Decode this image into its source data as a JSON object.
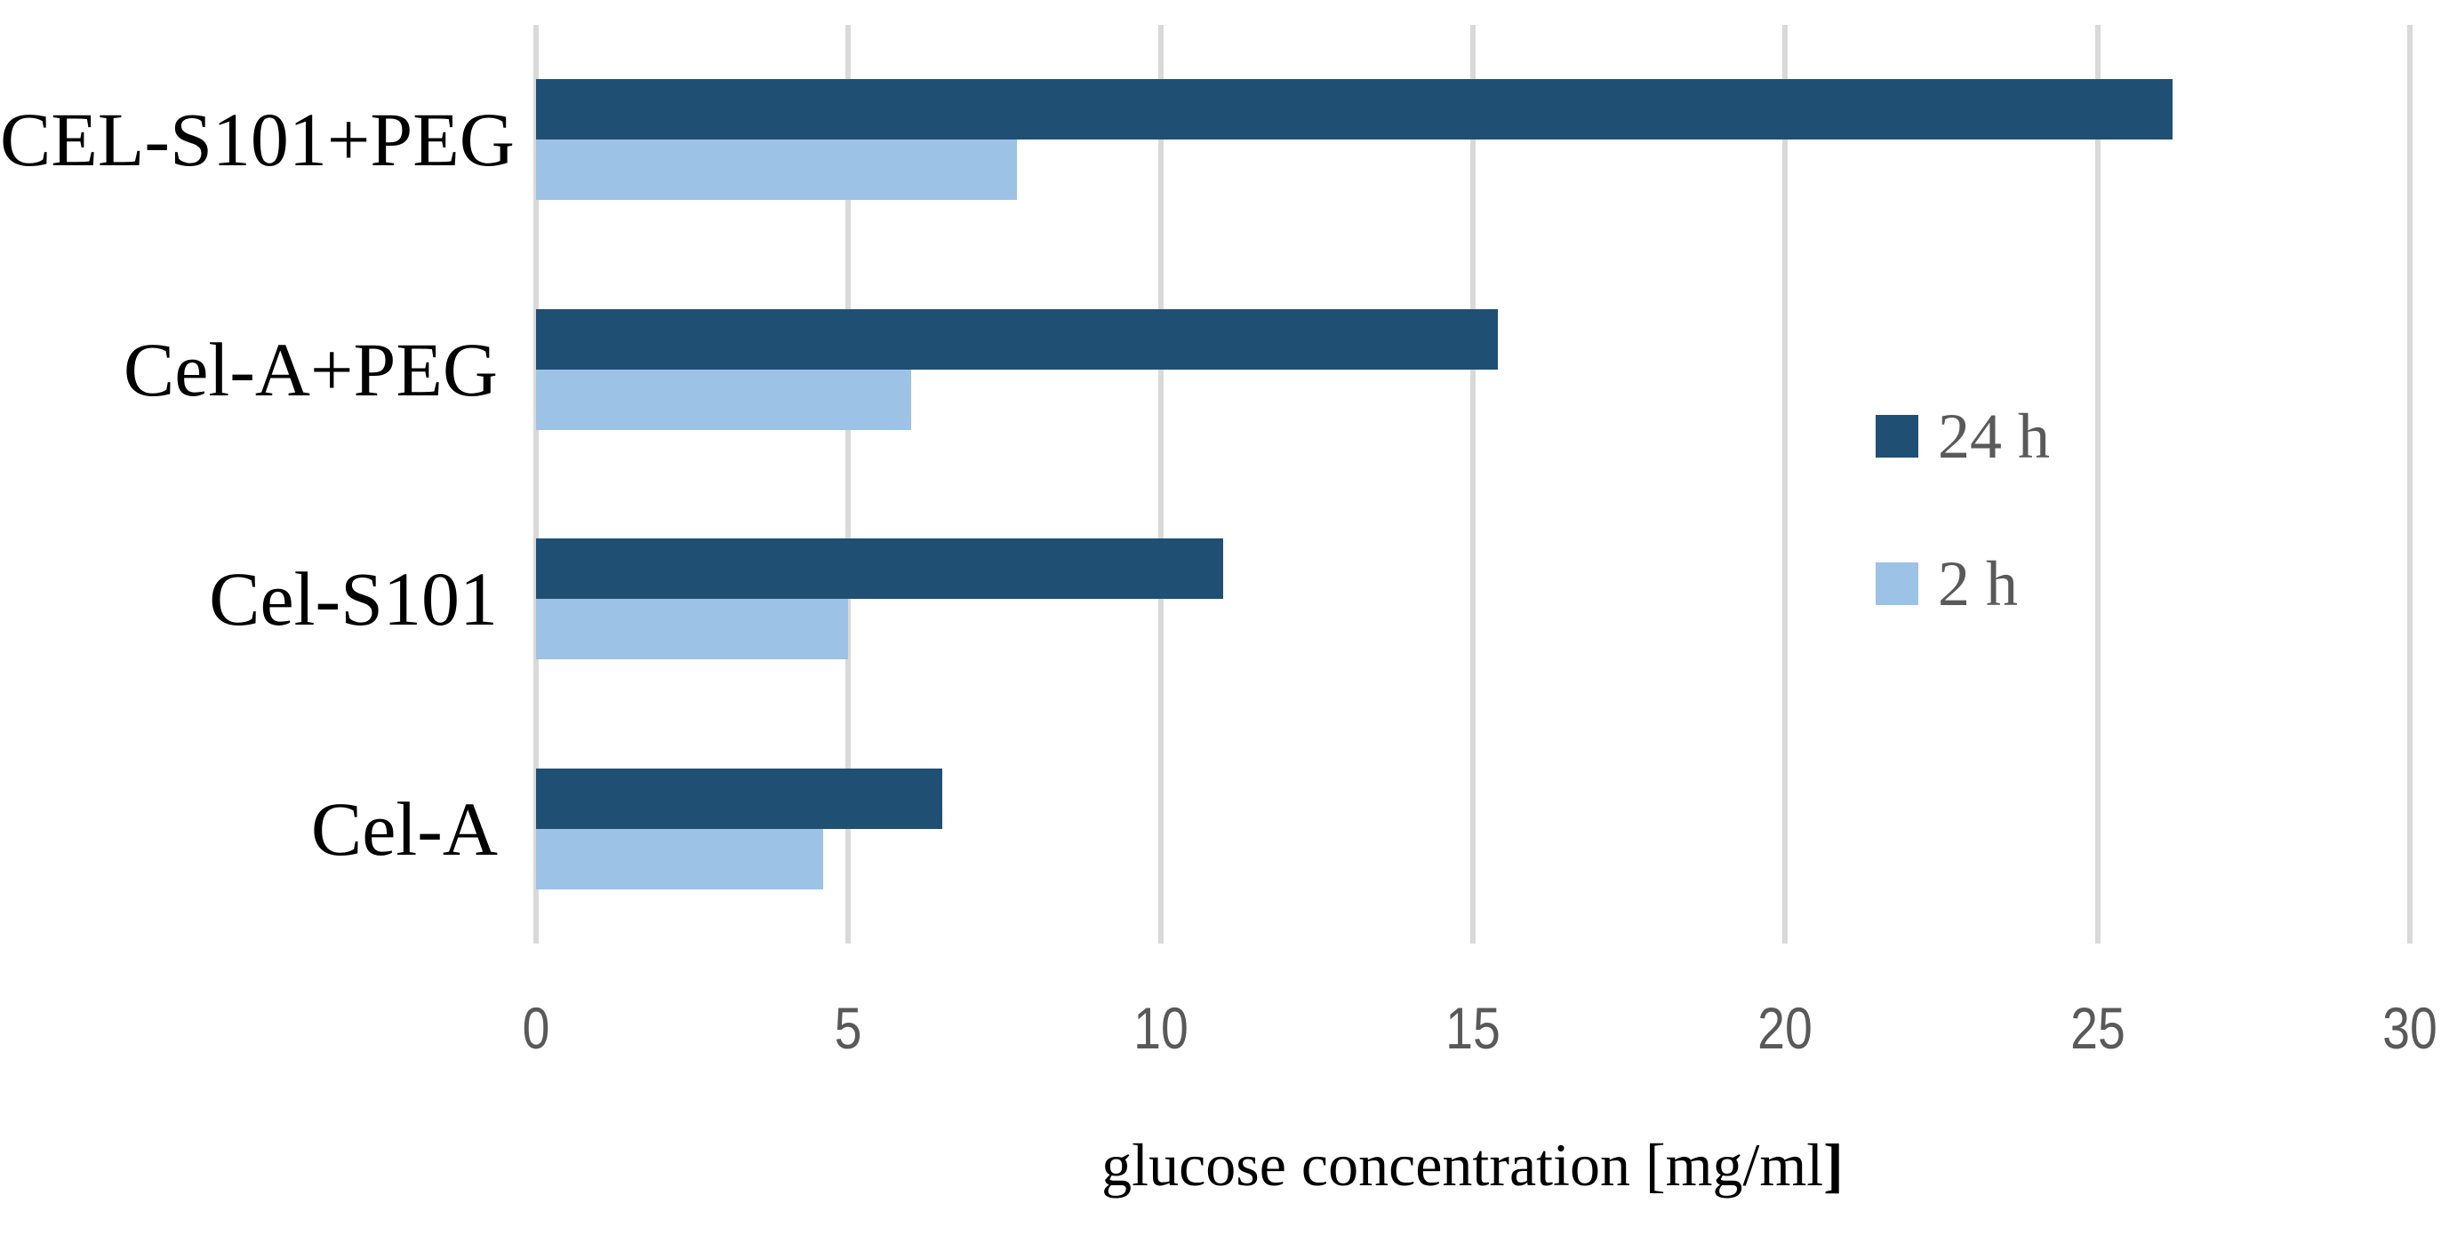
{
  "chart_data": {
    "type": "bar",
    "orientation": "horizontal",
    "xlabel": "glucose concentration [mg/ml]",
    "xlabel_main": "glucose concentration [mg/ml",
    "xlabel_suffix": "]",
    "categories": [
      "CEL-S101+PEG",
      "Cel-A+PEG",
      "Cel-S101",
      "Cel-A"
    ],
    "series": [
      {
        "name": "24 h",
        "color": "#204F74",
        "values": [
          26.2,
          15.4,
          11.0,
          6.5
        ]
      },
      {
        "name": "2 h",
        "color": "#9CC2E5",
        "values": [
          7.7,
          6.0,
          5.0,
          4.6
        ]
      }
    ],
    "x_ticks": [
      0,
      5,
      10,
      15,
      20,
      25,
      30
    ],
    "xlim": [
      0,
      30
    ],
    "grid": true,
    "legend_position": "right",
    "colors": {
      "gridline": "#d9d9d9",
      "tick_text": "#595959",
      "legend_text": "#595959",
      "category_text": "#000000",
      "title_text": "#000000",
      "background": "#ffffff"
    }
  }
}
